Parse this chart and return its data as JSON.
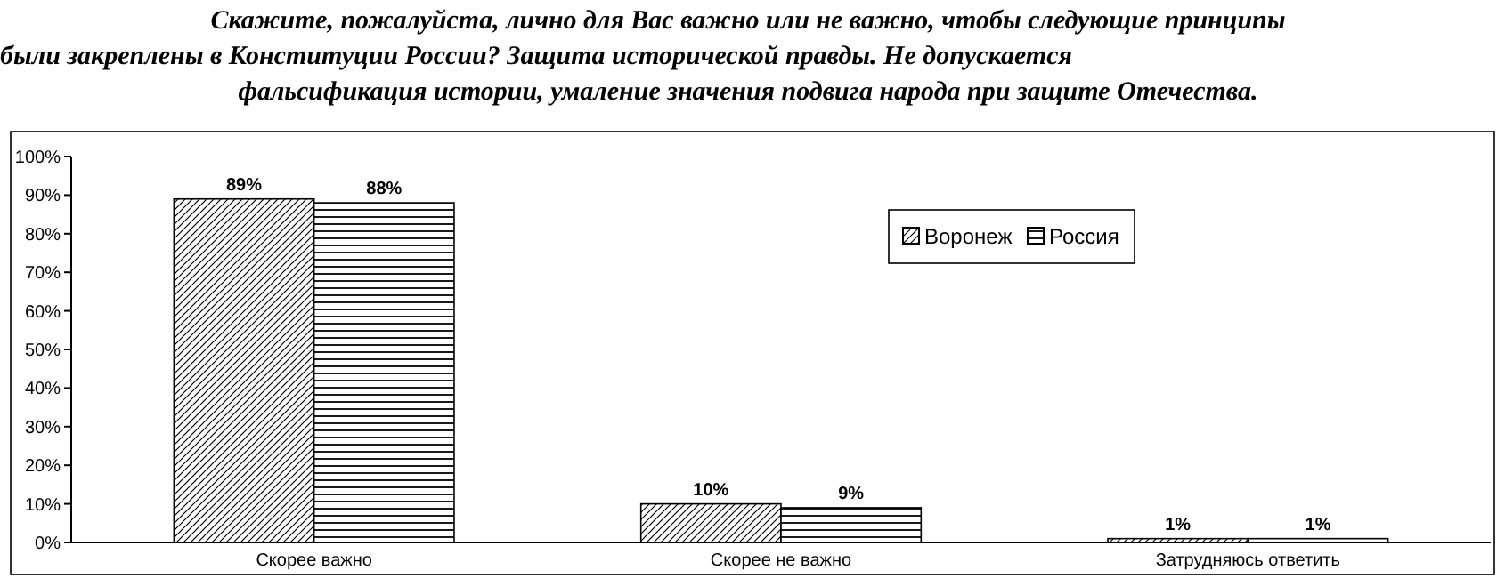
{
  "chart_data": {
    "type": "bar",
    "title": "Скажите, пожалуйста, лично для Вас важно или не важно, чтобы следующие принципы\nбыли закреплены в Конституции России? Защита исторической правды. Не допускается\nфальсификация истории, умаление значения подвига народа при защите Отечества.",
    "categories": [
      "Скорее важно",
      "Скорее не важно",
      "Затрудняюсь ответить"
    ],
    "series": [
      {
        "name": "Воронеж",
        "color": "#000000",
        "values": [
          89,
          10,
          1
        ],
        "value_labels": [
          "89%",
          "10%",
          "1%"
        ]
      },
      {
        "name": "Россия",
        "color": "#000000",
        "values": [
          88,
          9,
          1
        ],
        "value_labels": [
          "88%",
          "9%",
          "1%"
        ]
      }
    ],
    "ylim": [
      0,
      100
    ],
    "yticks": [
      {
        "value": 0,
        "label": "0%"
      },
      {
        "value": 10,
        "label": "10%"
      },
      {
        "value": 20,
        "label": "20%"
      },
      {
        "value": 30,
        "label": "30%"
      },
      {
        "value": 40,
        "label": "40%"
      },
      {
        "value": 50,
        "label": "50%"
      },
      {
        "value": 60,
        "label": "60%"
      },
      {
        "value": 70,
        "label": "70%"
      },
      {
        "value": 80,
        "label": "80%"
      },
      {
        "value": 90,
        "label": "90%"
      },
      {
        "value": 100,
        "label": "100%"
      }
    ],
    "grid": false,
    "legend": "top right"
  }
}
